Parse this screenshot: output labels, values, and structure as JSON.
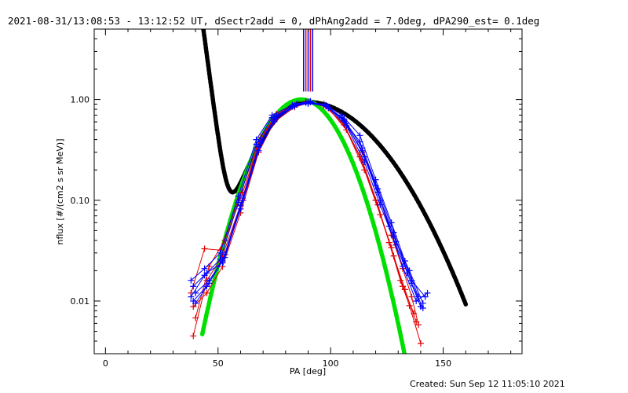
{
  "chart_data": {
    "type": "line",
    "title": "2021-08-31/13:08:53 - 13:12:52 UT, dSectr2add = 0, dPhAng2add = 7.0deg, dPA290_est=  0.1deg",
    "xlabel": "PA [deg]",
    "ylabel": "nflux [#/(cm2 s sr MeV)]",
    "footer": "Created: Sun Sep 12 11:05:10 2021",
    "xlim": [
      -5,
      185
    ],
    "ylim": [
      0.003,
      5
    ],
    "yscale": "log",
    "x_ticks": [
      0,
      50,
      100,
      150
    ],
    "x_tick_labels": [
      "0",
      "50",
      "100",
      "150"
    ],
    "y_ticks": [
      0.01,
      0.1,
      1.0
    ],
    "y_tick_labels": [
      "0.01",
      "0.10",
      "1.00"
    ],
    "grid": false,
    "colors": {
      "red": "#e00000",
      "blue": "#0000ff",
      "black": "#000000",
      "green": "#00e000"
    },
    "vertical_lines": [
      {
        "x": 88,
        "color": "#0000ff"
      },
      {
        "x": 89,
        "color": "#e00000"
      },
      {
        "x": 90,
        "color": "#0000ff"
      },
      {
        "x": 91,
        "color": "#e00000"
      },
      {
        "x": 92,
        "color": "#0000ff"
      }
    ],
    "series": [
      {
        "color": "#e00000",
        "marker": "plus",
        "points": [
          [
            39,
            0.0045
          ],
          [
            45,
            0.016
          ],
          [
            52,
            0.028
          ],
          [
            60,
            0.09
          ],
          [
            68,
            0.36
          ],
          [
            75,
            0.66
          ],
          [
            84,
            0.88
          ],
          [
            90,
            0.93
          ],
          [
            98,
            0.85
          ],
          [
            106,
            0.56
          ],
          [
            114,
            0.25
          ],
          [
            121,
            0.09
          ],
          [
            126,
            0.038
          ],
          [
            131,
            0.016
          ],
          [
            135,
            0.009
          ],
          [
            140,
            0.0038
          ]
        ]
      },
      {
        "color": "#e00000",
        "marker": "plus",
        "points": [
          [
            40,
            0.0068
          ],
          [
            46,
            0.022
          ],
          [
            53,
            0.04
          ],
          [
            61,
            0.12
          ],
          [
            69,
            0.42
          ],
          [
            76,
            0.72
          ],
          [
            85,
            0.9
          ],
          [
            91,
            0.95
          ],
          [
            99,
            0.82
          ],
          [
            107,
            0.5
          ],
          [
            115,
            0.2
          ],
          [
            122,
            0.072
          ],
          [
            128,
            0.028
          ],
          [
            133,
            0.013
          ],
          [
            138,
            0.0062
          ]
        ]
      },
      {
        "color": "#e00000",
        "marker": "plus",
        "points": [
          [
            38,
            0.012
          ],
          [
            44,
            0.033
          ],
          [
            51,
            0.032
          ],
          [
            59,
            0.1
          ],
          [
            67,
            0.33
          ],
          [
            74,
            0.62
          ],
          [
            83,
            0.86
          ],
          [
            89,
            0.96
          ],
          [
            97,
            0.87
          ],
          [
            105,
            0.6
          ],
          [
            113,
            0.27
          ],
          [
            120,
            0.1
          ],
          [
            127,
            0.034
          ],
          [
            132,
            0.014
          ],
          [
            137,
            0.0075
          ]
        ]
      },
      {
        "color": "#e00000",
        "marker": "plus",
        "points": [
          [
            39,
            0.0088
          ],
          [
            45,
            0.012
          ],
          [
            52,
            0.022
          ],
          [
            60,
            0.075
          ],
          [
            68,
            0.3
          ],
          [
            75,
            0.6
          ],
          [
            84,
            0.84
          ],
          [
            90,
            0.92
          ],
          [
            98,
            0.88
          ],
          [
            106,
            0.62
          ],
          [
            114,
            0.3
          ],
          [
            121,
            0.12
          ],
          [
            127,
            0.045
          ],
          [
            132,
            0.021
          ],
          [
            136,
            0.011
          ],
          [
            139,
            0.0058
          ]
        ]
      },
      {
        "color": "#0000ff",
        "marker": "plus",
        "points": [
          [
            38,
            0.016
          ],
          [
            44,
            0.021
          ],
          [
            51,
            0.03
          ],
          [
            59,
            0.11
          ],
          [
            67,
            0.4
          ],
          [
            74,
            0.7
          ],
          [
            83,
            0.88
          ],
          [
            89,
            0.94
          ],
          [
            97,
            0.9
          ],
          [
            105,
            0.7
          ],
          [
            113,
            0.44
          ],
          [
            120,
            0.16
          ],
          [
            127,
            0.06
          ],
          [
            133,
            0.025
          ],
          [
            139,
            0.011
          ]
        ]
      },
      {
        "color": "#0000ff",
        "marker": "plus",
        "points": [
          [
            39,
            0.01
          ],
          [
            45,
            0.014
          ],
          [
            52,
            0.025
          ],
          [
            60,
            0.088
          ],
          [
            68,
            0.34
          ],
          [
            75,
            0.64
          ],
          [
            84,
            0.87
          ],
          [
            90,
            0.95
          ],
          [
            98,
            0.86
          ],
          [
            106,
            0.64
          ],
          [
            114,
            0.33
          ],
          [
            121,
            0.13
          ],
          [
            128,
            0.048
          ],
          [
            134,
            0.019
          ],
          [
            140,
            0.0088
          ]
        ]
      },
      {
        "color": "#0000ff",
        "marker": "plus",
        "points": [
          [
            40,
            0.012
          ],
          [
            46,
            0.016
          ],
          [
            53,
            0.027
          ],
          [
            61,
            0.1
          ],
          [
            69,
            0.38
          ],
          [
            76,
            0.68
          ],
          [
            85,
            0.89
          ],
          [
            91,
            0.94
          ],
          [
            99,
            0.84
          ],
          [
            107,
            0.58
          ],
          [
            115,
            0.27
          ],
          [
            122,
            0.1
          ],
          [
            129,
            0.039
          ],
          [
            136,
            0.016
          ],
          [
            142,
            0.011
          ]
        ]
      },
      {
        "color": "#0000ff",
        "marker": "plus",
        "points": [
          [
            38,
            0.011
          ],
          [
            44,
            0.018
          ],
          [
            51,
            0.026
          ],
          [
            59,
            0.095
          ],
          [
            67,
            0.36
          ],
          [
            74,
            0.66
          ],
          [
            83,
            0.85
          ],
          [
            89,
            0.93
          ],
          [
            97,
            0.89
          ],
          [
            105,
            0.66
          ],
          [
            113,
            0.38
          ],
          [
            120,
            0.14
          ],
          [
            126,
            0.055
          ],
          [
            132,
            0.022
          ],
          [
            138,
            0.01
          ],
          [
            143,
            0.012
          ]
        ]
      },
      {
        "color": "#0000ff",
        "marker": "plus",
        "points": [
          [
            39,
            0.014
          ],
          [
            45,
            0.019
          ],
          [
            52,
            0.024
          ],
          [
            60,
            0.082
          ],
          [
            68,
            0.31
          ],
          [
            75,
            0.61
          ],
          [
            84,
            0.86
          ],
          [
            90,
            0.91
          ],
          [
            98,
            0.87
          ],
          [
            106,
            0.61
          ],
          [
            114,
            0.31
          ],
          [
            121,
            0.12
          ],
          [
            128,
            0.044
          ],
          [
            135,
            0.02
          ],
          [
            141,
            0.0095
          ]
        ]
      },
      {
        "color": "#0000ff",
        "marker": "plus",
        "points": [
          [
            40,
            0.0095
          ],
          [
            46,
            0.015
          ],
          [
            53,
            0.029
          ],
          [
            61,
            0.105
          ],
          [
            69,
            0.39
          ],
          [
            76,
            0.69
          ],
          [
            85,
            0.91
          ],
          [
            91,
            0.96
          ],
          [
            99,
            0.83
          ],
          [
            107,
            0.55
          ],
          [
            115,
            0.24
          ],
          [
            122,
            0.09
          ],
          [
            129,
            0.036
          ],
          [
            136,
            0.015
          ],
          [
            141,
            0.0085
          ]
        ]
      }
    ],
    "model_curves": [
      {
        "color": "#000000",
        "style": "dashed-thick",
        "x_range": [
          43,
          160
        ]
      },
      {
        "color": "#00e000",
        "style": "dashed-thick",
        "x_range": [
          43,
          135
        ]
      }
    ]
  }
}
